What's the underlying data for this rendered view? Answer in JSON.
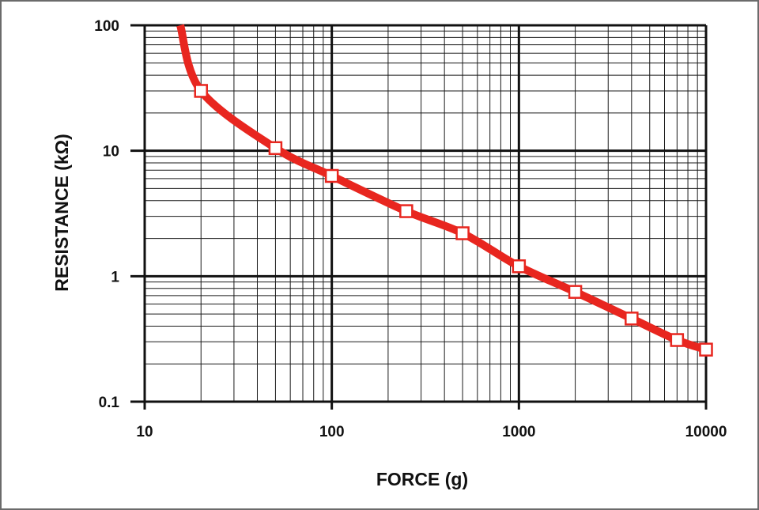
{
  "chart_data": {
    "type": "line",
    "title": "",
    "xlabel": "FORCE (g)",
    "ylabel": "RESISTANCE (kΩ)",
    "x_scale": "log",
    "y_scale": "log",
    "xlim": [
      10,
      10000
    ],
    "ylim": [
      0.1,
      100
    ],
    "grid": true,
    "x_tick_labels": [
      "10",
      "100",
      "1000",
      "10000"
    ],
    "y_tick_labels": [
      "0.1",
      "1",
      "10",
      "100"
    ],
    "series": [
      {
        "line_color": "#e8261f",
        "marker": "square",
        "marker_fill": "#ffffff",
        "curve_start": [
          15.5,
          100
        ],
        "x": [
          20,
          50,
          100,
          250,
          500,
          1000,
          2000,
          4000,
          7000,
          10000
        ],
        "y": [
          30,
          10.5,
          6.3,
          3.3,
          2.2,
          1.2,
          0.75,
          0.46,
          0.31,
          0.26
        ]
      }
    ]
  }
}
